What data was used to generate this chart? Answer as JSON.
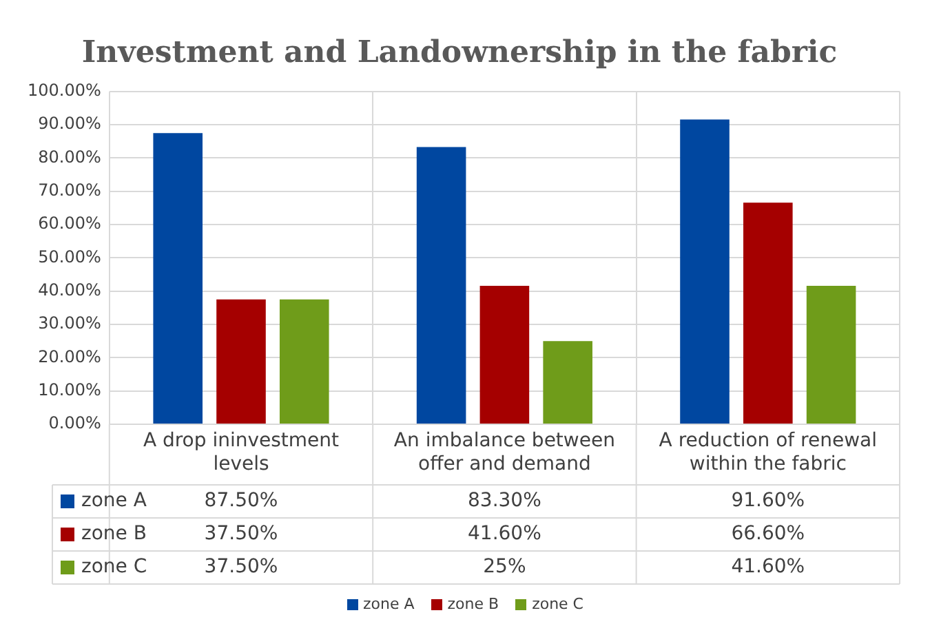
{
  "chart_data": {
    "type": "bar",
    "title": "Investment and Landownership in the fabric",
    "categories": [
      "A drop ininvestment levels",
      "An imbalance between offer and demand",
      "A reduction of renewal within the fabric"
    ],
    "series": [
      {
        "name": "zone A",
        "color": "#0047a0",
        "values": [
          87.5,
          83.3,
          91.6
        ],
        "value_labels": [
          "87.50%",
          "83.30%",
          "91.60%"
        ]
      },
      {
        "name": "zone B",
        "color": "#a50000",
        "values": [
          37.5,
          41.6,
          66.6
        ],
        "value_labels": [
          "37.50%",
          "41.60%",
          "66.60%"
        ]
      },
      {
        "name": "zone C",
        "color": "#6f9c1a",
        "values": [
          37.5,
          25,
          41.6
        ],
        "value_labels": [
          "37.50%",
          "25%",
          "41.60%"
        ]
      }
    ],
    "ylim": [
      0,
      100
    ],
    "yticks": [
      {
        "value": 0,
        "label": "0.00%"
      },
      {
        "value": 10,
        "label": "10.00%"
      },
      {
        "value": 20,
        "label": "20.00%"
      },
      {
        "value": 30,
        "label": "30.00%"
      },
      {
        "value": 40,
        "label": "40.00%"
      },
      {
        "value": 50,
        "label": "50.00%"
      },
      {
        "value": 60,
        "label": "60.00%"
      },
      {
        "value": 70,
        "label": "70.00%"
      },
      {
        "value": 80,
        "label": "80.00%"
      },
      {
        "value": 90,
        "label": "90.00%"
      },
      {
        "value": 100,
        "label": "100.00%"
      }
    ],
    "grid": true,
    "legend": "bottom"
  }
}
